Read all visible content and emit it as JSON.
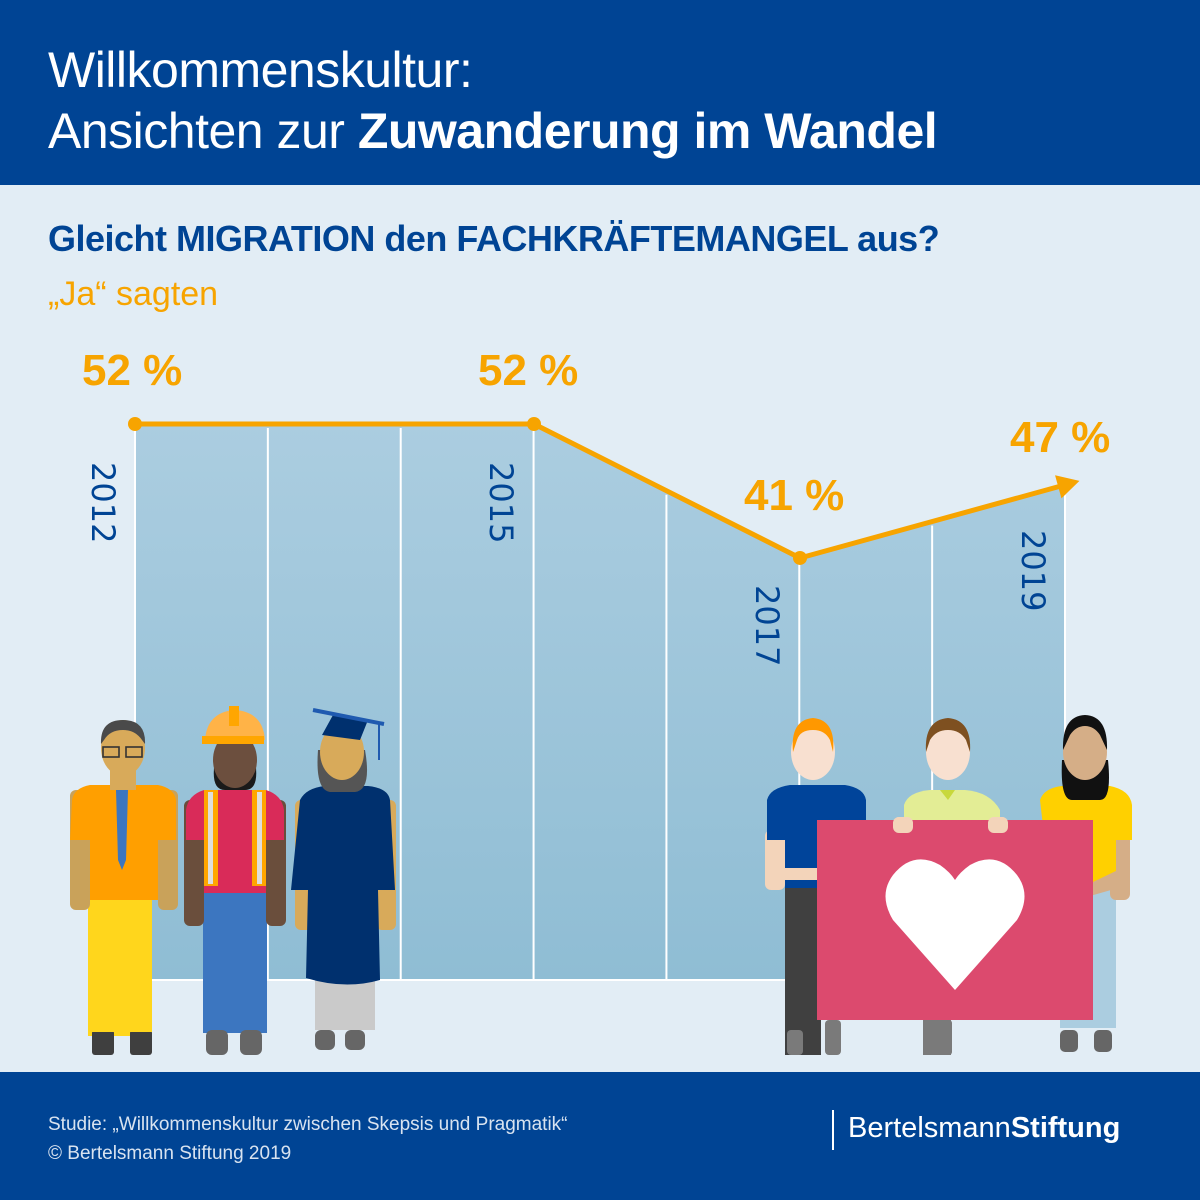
{
  "header": {
    "title_line1": "Willkommenskultur:",
    "title_line2_regular": "Ansichten zur ",
    "title_line2_bold": "Zuwanderung im Wandel"
  },
  "question": "Gleicht MIGRATION den FACHKRÄFTEMANGEL aus?",
  "subtitle": "„Ja“ sagten",
  "colors": {
    "brand_blue": "#004494",
    "line_orange": "#f7a400",
    "area_blue": "#abcde0",
    "background": "#e2edf5",
    "sign_red": "#dc4a6e"
  },
  "chart_data": {
    "type": "line",
    "title": "Gleicht MIGRATION den FACHKRÄFTEMANGEL aus?",
    "subtitle": "„Ja“ sagten",
    "xlabel": "",
    "ylabel": "",
    "x": [
      2012,
      2015,
      2017,
      2019
    ],
    "tick_labels": [
      "2012",
      "2015",
      "2017",
      "2019"
    ],
    "series": [
      {
        "name": "Ja",
        "values": [
          52,
          52,
          41,
          47
        ],
        "unit": "%"
      }
    ],
    "data_labels": [
      "52 %",
      "52 %",
      "41 %",
      "47 %"
    ],
    "xlim": [
      2012,
      2019
    ],
    "grid": false,
    "legend": "none",
    "last_point_marker": "arrow"
  },
  "illustration": {
    "left_group": [
      "office-worker",
      "construction-worker",
      "graduate"
    ],
    "right_group": [
      "person-blue-shirt",
      "person-green-shirt",
      "person-yellow-shirt"
    ],
    "sign_icon": "heart-icon"
  },
  "footer": {
    "source_line1": "Studie: „Willkommenskultur zwischen Skepsis und Pragmatik“",
    "source_line2": "© Bertelsmann Stiftung 2019",
    "logo_regular": "Bertelsmann",
    "logo_bold": "Stiftung"
  }
}
